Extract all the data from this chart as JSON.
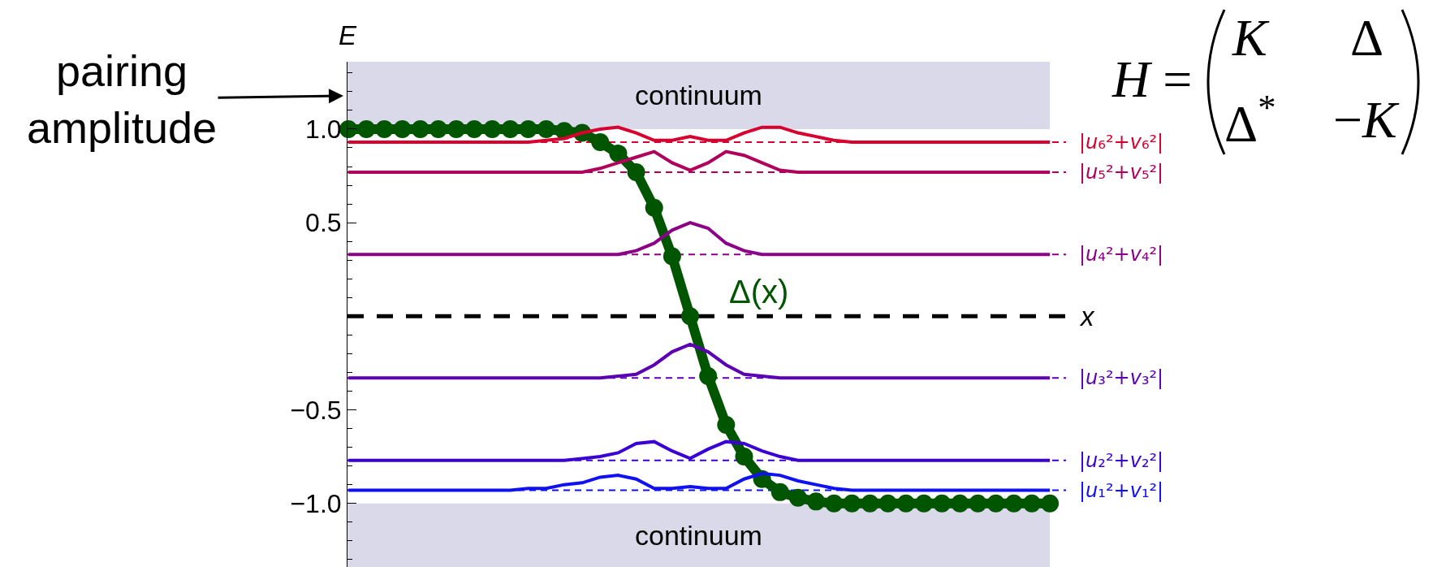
{
  "chart_data": {
    "type": "line",
    "xlabel": "x",
    "ylabel": "E",
    "categories": [
      null,
      null,
      null,
      null,
      null,
      null,
      null,
      null,
      null,
      null,
      null,
      null,
      null,
      null,
      null,
      null,
      null,
      null,
      null,
      null,
      null,
      null,
      null,
      null,
      null,
      null,
      null,
      null,
      null,
      null,
      null,
      null,
      null,
      null,
      null,
      null,
      null,
      null,
      null,
      null
    ],
    "ylim": [
      -1.34,
      1.36
    ],
    "yticks": [
      {
        "value": -1.3,
        "label": null
      },
      {
        "value": -1.2,
        "label": null
      },
      {
        "value": -1.1,
        "label": null
      },
      {
        "value": -1.0,
        "label": "−1.0"
      },
      {
        "value": -0.9,
        "label": null
      },
      {
        "value": -0.8,
        "label": null
      },
      {
        "value": -0.7,
        "label": null
      },
      {
        "value": -0.6,
        "label": null
      },
      {
        "value": -0.5,
        "label": "−0.5"
      },
      {
        "value": -0.4,
        "label": null
      },
      {
        "value": -0.3,
        "label": null
      },
      {
        "value": -0.2,
        "label": null
      },
      {
        "value": -0.1,
        "label": null
      },
      {
        "value": 0.1,
        "label": null
      },
      {
        "value": 0.2,
        "label": null
      },
      {
        "value": 0.3,
        "label": null
      },
      {
        "value": 0.4,
        "label": null
      },
      {
        "value": 0.5,
        "label": "0.5"
      },
      {
        "value": 0.6,
        "label": null
      },
      {
        "value": 0.7,
        "label": null
      },
      {
        "value": 0.8,
        "label": null
      },
      {
        "value": 0.9,
        "label": null
      },
      {
        "value": 1.0,
        "label": "1.0"
      },
      {
        "value": 1.1,
        "label": null
      },
      {
        "value": 1.2,
        "label": null
      },
      {
        "value": 1.3,
        "label": null
      }
    ],
    "tick_labels": "y",
    "legend": false,
    "marker": "none",
    "series": [
      {
        "name": "Δ(x)",
        "color": "#005500",
        "marker": "circle",
        "values": [
          1.0,
          1.0,
          1.0,
          1.0,
          1.0,
          1.0,
          1.0,
          1.0,
          1.0,
          1.0,
          1.0,
          1.0,
          0.99,
          0.98,
          0.93,
          0.87,
          0.77,
          0.58,
          0.32,
          0.0,
          -0.32,
          -0.58,
          -0.75,
          -0.87,
          -0.94,
          -0.97,
          -0.99,
          -1.0,
          -1.0,
          -1.0,
          -1.0,
          -1.0,
          -1.0,
          -1.0,
          -1.0,
          -1.0,
          -1.0,
          -1.0,
          -1.0,
          -1.0
        ]
      },
      {
        "name": "|u₆²+v₆²|",
        "color": "#d7002f",
        "values": [
          0.93,
          0.93,
          0.93,
          0.93,
          0.93,
          0.93,
          0.93,
          0.93,
          0.93,
          0.93,
          0.93,
          0.94,
          0.95,
          0.98,
          1.0,
          1.01,
          0.98,
          0.94,
          0.94,
          0.96,
          0.94,
          0.94,
          0.98,
          1.01,
          1.01,
          0.98,
          0.96,
          0.94,
          0.93,
          0.93,
          0.93,
          0.93,
          0.93,
          0.93,
          0.93,
          0.93,
          0.93,
          0.93,
          0.93,
          0.93
        ]
      },
      {
        "name": "|u₅²+v₅²|",
        "color": "#b0005c",
        "values": [
          0.77,
          0.77,
          0.77,
          0.77,
          0.77,
          0.77,
          0.77,
          0.77,
          0.77,
          0.77,
          0.77,
          0.77,
          0.77,
          0.77,
          0.79,
          0.82,
          0.85,
          0.88,
          0.82,
          0.78,
          0.82,
          0.88,
          0.86,
          0.82,
          0.78,
          0.77,
          0.77,
          0.77,
          0.77,
          0.77,
          0.77,
          0.77,
          0.77,
          0.77,
          0.77,
          0.77,
          0.77,
          0.77,
          0.77,
          0.77
        ]
      },
      {
        "name": "|u₄²+v₄²|",
        "color": "#8b0086",
        "values": [
          0.33,
          0.33,
          0.33,
          0.33,
          0.33,
          0.33,
          0.33,
          0.33,
          0.33,
          0.33,
          0.33,
          0.33,
          0.33,
          0.33,
          0.33,
          0.33,
          0.35,
          0.39,
          0.46,
          0.5,
          0.47,
          0.39,
          0.35,
          0.33,
          0.33,
          0.33,
          0.33,
          0.33,
          0.33,
          0.33,
          0.33,
          0.33,
          0.33,
          0.33,
          0.33,
          0.33,
          0.33,
          0.33,
          0.33,
          0.33
        ]
      },
      {
        "name": "|u₃²+v₃²|",
        "color": "#5c00b4",
        "values": [
          -0.33,
          -0.33,
          -0.33,
          -0.33,
          -0.33,
          -0.33,
          -0.33,
          -0.33,
          -0.33,
          -0.33,
          -0.33,
          -0.33,
          -0.33,
          -0.33,
          -0.33,
          -0.32,
          -0.31,
          -0.26,
          -0.19,
          -0.15,
          -0.19,
          -0.26,
          -0.31,
          -0.32,
          -0.33,
          -0.33,
          -0.33,
          -0.33,
          -0.33,
          -0.33,
          -0.33,
          -0.33,
          -0.33,
          -0.33,
          -0.33,
          -0.33,
          -0.33,
          -0.33,
          -0.33,
          -0.33
        ]
      },
      {
        "name": "|u₂²+v₂²|",
        "color": "#3a00d4",
        "values": [
          -0.77,
          -0.77,
          -0.77,
          -0.77,
          -0.77,
          -0.77,
          -0.77,
          -0.77,
          -0.77,
          -0.77,
          -0.77,
          -0.77,
          -0.77,
          -0.76,
          -0.75,
          -0.73,
          -0.68,
          -0.67,
          -0.72,
          -0.76,
          -0.71,
          -0.67,
          -0.68,
          -0.72,
          -0.75,
          -0.77,
          -0.77,
          -0.77,
          -0.77,
          -0.77,
          -0.77,
          -0.77,
          -0.77,
          -0.77,
          -0.77,
          -0.77,
          -0.77,
          -0.77,
          -0.77,
          -0.77
        ]
      },
      {
        "name": "|u₁²+v₁²|",
        "color": "#1010f5",
        "values": [
          -0.93,
          -0.93,
          -0.93,
          -0.93,
          -0.93,
          -0.93,
          -0.93,
          -0.93,
          -0.93,
          -0.93,
          -0.92,
          -0.92,
          -0.9,
          -0.89,
          -0.86,
          -0.85,
          -0.87,
          -0.92,
          -0.92,
          -0.91,
          -0.92,
          -0.92,
          -0.87,
          -0.84,
          -0.85,
          -0.88,
          -0.9,
          -0.92,
          -0.93,
          -0.93,
          -0.93,
          -0.93,
          -0.93,
          -0.93,
          -0.93,
          -0.93,
          -0.93,
          -0.93,
          -0.93,
          -0.93
        ]
      }
    ],
    "bands": [
      {
        "axis": "y",
        "from": 1.0,
        "to": 1.36,
        "label": "continuum",
        "color": "#d9d9e9"
      },
      {
        "axis": "y",
        "from": -1.34,
        "to": -1.0,
        "label": "continuum",
        "color": "#d9d9e9"
      }
    ],
    "ref_lines": [
      {
        "axis": "y",
        "value": 0,
        "color": "#000000",
        "line_style": "dashed"
      },
      {
        "axis": "y",
        "value": 0.93,
        "color": "#d7002f",
        "line_style": "dashed"
      },
      {
        "axis": "y",
        "value": 0.77,
        "color": "#b0005c",
        "line_style": "dashed"
      },
      {
        "axis": "y",
        "value": 0.33,
        "color": "#8b0086",
        "line_style": "dashed"
      },
      {
        "axis": "y",
        "value": -0.33,
        "color": "#5c00b4",
        "line_style": "dashed"
      },
      {
        "axis": "y",
        "value": -0.77,
        "color": "#3a00d4",
        "line_style": "dashed"
      },
      {
        "axis": "y",
        "value": -0.93,
        "color": "#1010f5",
        "line_style": "dashed"
      }
    ],
    "annotations": [
      "pairing\namplitude",
      "H =",
      "K",
      "Δ",
      "Δ$^{*}$",
      "−K"
    ]
  }
}
